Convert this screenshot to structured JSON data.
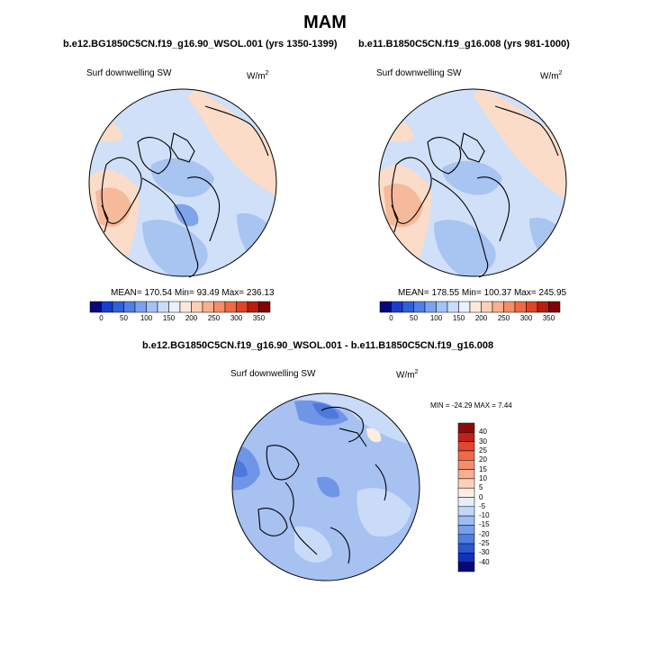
{
  "title": "MAM",
  "panels": [
    {
      "case": "b.e12.BG1850C5CN.f19_g16.90_WSOL.001 (yrs 1350-1399)",
      "variable": "Surf downwelling SW",
      "units": "W/m",
      "units_sup": "2",
      "stats": "MEAN= 170.54  Min=  93.49  Max= 236.13"
    },
    {
      "case": "b.e11.B1850C5CN.f19_g16.008 (yrs 981-1000)",
      "variable": "Surf downwelling SW",
      "units": "W/m",
      "units_sup": "2",
      "stats": "MEAN= 178.55  Min= 100.37  Max= 245.95"
    }
  ],
  "diff_panel": {
    "case": "b.e12.BG1850C5CN.f19_g16.90_WSOL.001 - b.e11.B1850C5CN.f19_g16.008",
    "variable": "Surf downwelling SW",
    "units": "W/m",
    "units_sup": "2",
    "stats": "MIN = -24.29  MAX =   7.44"
  },
  "colorbar_abs": {
    "labels": [
      "0",
      "50",
      "100",
      "150",
      "200",
      "250",
      "300",
      "350"
    ],
    "colors": [
      "#08087a",
      "#1a3ccf",
      "#2f61d8",
      "#4f80e4",
      "#7aa3ee",
      "#a3c2f5",
      "#c9dcfa",
      "#e9f1fd",
      "#fde9dc",
      "#fbd0b5",
      "#f8b08d",
      "#f58d66",
      "#ef6a44",
      "#dc4526",
      "#b91d10",
      "#800505"
    ]
  },
  "colorbar_diff": {
    "labels": [
      "40",
      "30",
      "25",
      "20",
      "15",
      "10",
      "5",
      "0",
      "-5",
      "-10",
      "-15",
      "-20",
      "-25",
      "-30",
      "-40"
    ],
    "colors": [
      "#8a0b0b",
      "#c0211a",
      "#e3462e",
      "#f06a48",
      "#f48d6c",
      "#f7ae91",
      "#fbd2b9",
      "#fdeee2",
      "#e4eefd",
      "#c2d7f8",
      "#9ebef2",
      "#789fe9",
      "#4f7ee0",
      "#2a57d2",
      "#1430b8",
      "#07087a"
    ]
  },
  "map_colors": {
    "abs_base": "#cfe0f8",
    "abs_warm": "#fbdcc8",
    "abs_warm2": "#f6b99a",
    "abs_cool": "#a8c4f1",
    "abs_cool2": "#7ea4ea",
    "diff_base": "#a7c1f1",
    "diff_light": "#c9dbf8",
    "diff_dark": "#6f95e6",
    "diff_darker": "#4f78dc",
    "diff_warm": "#fdece0"
  }
}
